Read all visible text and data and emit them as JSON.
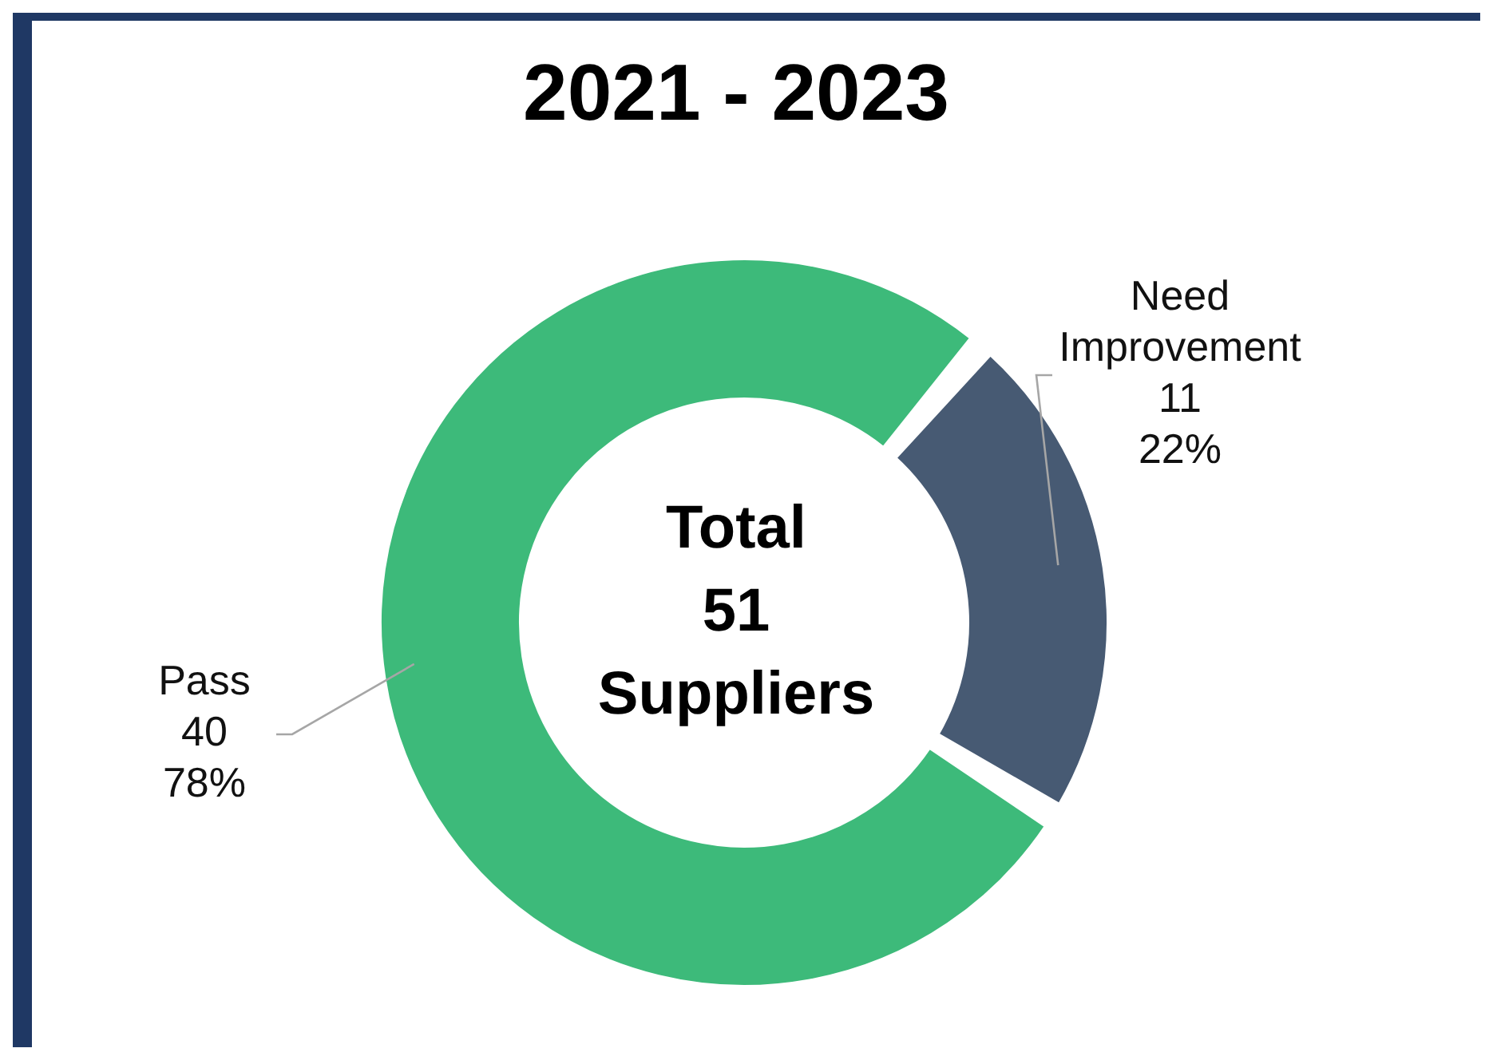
{
  "chart_data": {
    "type": "donut",
    "title": "2021 - 2023",
    "categories": [
      "Pass",
      "Need Improvement"
    ],
    "values": [
      78,
      22
    ],
    "colors": [
      "#3dba7a",
      "#475a73"
    ],
    "value_labels": [
      "40\n78%",
      "11\n22%"
    ],
    "annotations": [
      "Total 51 Suppliers"
    ]
  }
}
